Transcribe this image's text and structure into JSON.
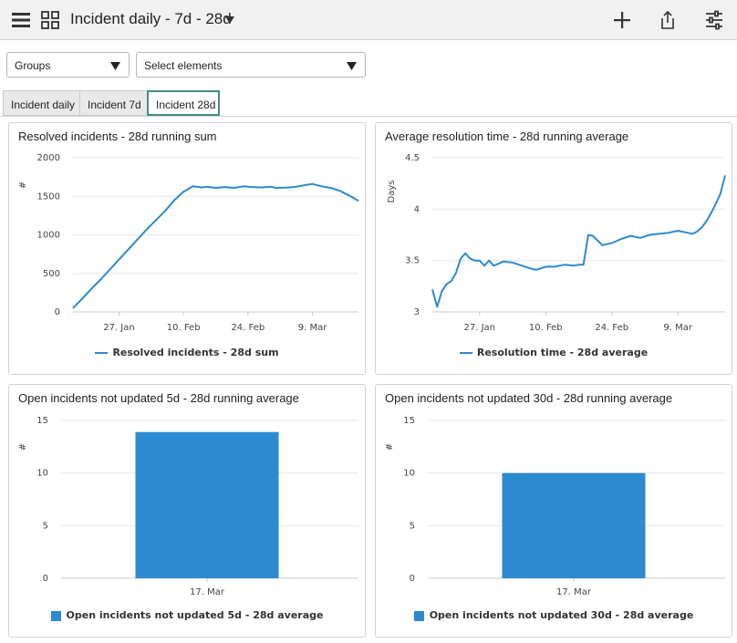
{
  "header": {
    "title": "Incident daily - 7d - 28d"
  },
  "filters": {
    "groups_label": "Groups",
    "elements_label": "Select elements"
  },
  "tabs": [
    {
      "label": "Incident daily",
      "active": false
    },
    {
      "label": "Incident 7d",
      "active": false
    },
    {
      "label": "Incident 28d",
      "active": true
    }
  ],
  "colors": {
    "series": "#2b8ad0",
    "active_tab_border": "#3f8f7f"
  },
  "panels": [
    {
      "title": "Resolved incidents - 28d running sum",
      "legend": "Resolved incidents - 28d sum",
      "chart_data": {
        "type": "line",
        "ylabel": "#",
        "ylim": [
          0,
          2000
        ],
        "yticks": [
          "2000",
          "1500",
          "1000",
          "500",
          "0"
        ],
        "xticks": [
          "27. Jan",
          "10. Feb",
          "24. Feb",
          "9. Mar"
        ],
        "xstart": "2024-01-17",
        "series": [
          {
            "name": "Resolved incidents - 28d sum",
            "x": [
              "2024-01-17",
              "2024-01-19",
              "2024-01-21",
              "2024-01-23",
              "2024-01-25",
              "2024-01-27",
              "2024-01-29",
              "2024-01-31",
              "2024-02-02",
              "2024-02-04",
              "2024-02-06",
              "2024-02-08",
              "2024-02-10",
              "2024-02-12",
              "2024-02-14",
              "2024-02-15",
              "2024-02-17",
              "2024-02-19",
              "2024-02-21",
              "2024-02-23",
              "2024-02-25",
              "2024-02-27",
              "2024-02-29",
              "2024-03-01",
              "2024-03-03",
              "2024-03-05",
              "2024-03-07",
              "2024-03-09",
              "2024-03-11",
              "2024-03-13",
              "2024-03-15",
              "2024-03-17",
              "2024-03-19"
            ],
            "values": [
              50,
              170,
              300,
              420,
              550,
              680,
              810,
              940,
              1070,
              1190,
              1310,
              1450,
              1560,
              1630,
              1615,
              1625,
              1610,
              1620,
              1610,
              1630,
              1620,
              1615,
              1625,
              1610,
              1612,
              1620,
              1640,
              1660,
              1630,
              1610,
              1570,
              1510,
              1440
            ]
          }
        ]
      }
    },
    {
      "title": "Average resolution time - 28d running average",
      "legend": "Resolution time - 28d average",
      "chart_data": {
        "type": "line",
        "ylabel": "Days",
        "ylim": [
          3,
          4.5
        ],
        "yticks": [
          "4.5",
          "4",
          "3.5",
          "3"
        ],
        "xticks": [
          "27. Jan",
          "10. Feb",
          "24. Feb",
          "9. Mar"
        ],
        "xstart": "2024-01-17",
        "series": [
          {
            "name": "Resolution time - 28d average",
            "x": [
              "2024-01-17",
              "2024-01-18",
              "2024-01-19",
              "2024-01-20",
              "2024-01-21",
              "2024-01-22",
              "2024-01-23",
              "2024-01-24",
              "2024-01-25",
              "2024-01-26",
              "2024-01-27",
              "2024-01-28",
              "2024-01-29",
              "2024-01-30",
              "2024-02-01",
              "2024-02-03",
              "2024-02-05",
              "2024-02-07",
              "2024-02-08",
              "2024-02-10",
              "2024-02-12",
              "2024-02-14",
              "2024-02-16",
              "2024-02-17",
              "2024-02-18",
              "2024-02-19",
              "2024-02-20",
              "2024-02-22",
              "2024-02-24",
              "2024-02-26",
              "2024-02-28",
              "2024-03-01",
              "2024-03-03",
              "2024-03-05",
              "2024-03-07",
              "2024-03-09",
              "2024-03-11",
              "2024-03-12",
              "2024-03-13",
              "2024-03-14",
              "2024-03-15",
              "2024-03-16",
              "2024-03-17",
              "2024-03-18",
              "2024-03-19"
            ],
            "values": [
              3.22,
              3.05,
              3.2,
              3.27,
              3.3,
              3.38,
              3.52,
              3.57,
              3.52,
              3.5,
              3.5,
              3.45,
              3.5,
              3.45,
              3.49,
              3.48,
              3.45,
              3.42,
              3.41,
              3.44,
              3.44,
              3.46,
              3.45,
              3.46,
              3.46,
              3.75,
              3.74,
              3.65,
              3.67,
              3.71,
              3.74,
              3.72,
              3.75,
              3.76,
              3.77,
              3.79,
              3.77,
              3.76,
              3.78,
              3.82,
              3.88,
              3.96,
              4.05,
              4.15,
              4.33
            ]
          }
        ]
      }
    },
    {
      "title": "Open incidents not updated 5d - 28d running average",
      "legend": "Open incidents not updated 5d - 28d average",
      "chart_data": {
        "type": "bar",
        "ylabel": "#",
        "ylim": [
          0,
          15
        ],
        "yticks": [
          "15",
          "10",
          "5",
          "0"
        ],
        "categories": [
          "17. Mar"
        ],
        "series": [
          {
            "name": "Open incidents not updated 5d - 28d average",
            "values": [
              13.9
            ]
          }
        ]
      }
    },
    {
      "title": "Open incidents not updated 30d - 28d running average",
      "legend": "Open incidents not updated 30d - 28d average",
      "chart_data": {
        "type": "bar",
        "ylabel": "#",
        "ylim": [
          0,
          15
        ],
        "yticks": [
          "15",
          "10",
          "5",
          "0"
        ],
        "categories": [
          "17. Mar"
        ],
        "series": [
          {
            "name": "Open incidents not updated 30d - 28d average",
            "values": [
              10
            ]
          }
        ]
      }
    }
  ]
}
